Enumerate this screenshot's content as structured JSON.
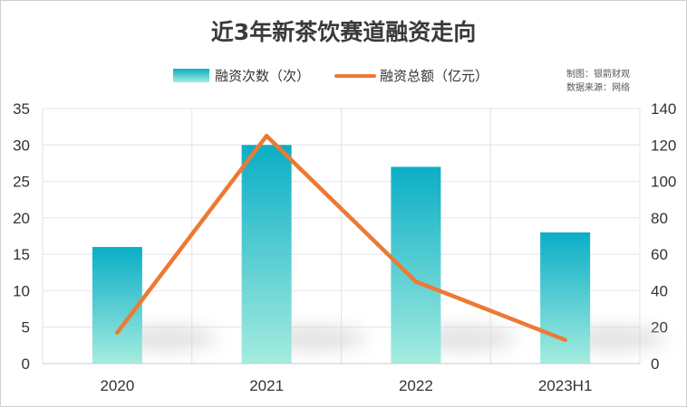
{
  "chart_data": {
    "type": "bar",
    "title": "近3年新茶饮赛道融资走向",
    "categories": [
      "2020",
      "2021",
      "2022",
      "2023H1"
    ],
    "series": [
      {
        "name": "融资次数（次）",
        "type": "bar",
        "axis": "left",
        "values": [
          16,
          30,
          27,
          18
        ]
      },
      {
        "name": "融资总额（亿元）",
        "type": "line",
        "axis": "right",
        "values": [
          17,
          125,
          45,
          13
        ]
      }
    ],
    "y_left": {
      "min": 0,
      "max": 35,
      "ticks": [
        0,
        5,
        10,
        15,
        20,
        25,
        30,
        35
      ]
    },
    "y_right": {
      "min": 0,
      "max": 140,
      "ticks": [
        0,
        20,
        40,
        60,
        80,
        100,
        120,
        140
      ]
    },
    "grid": true,
    "legend_position": "top"
  },
  "credits": [
    "制图：银箭财观",
    "数据来源：网络"
  ],
  "colors": {
    "bar_top": "#0aaec6",
    "bar_bottom": "#a4ecdf",
    "line": "#ec7a34",
    "grid": "#e4e4e4"
  }
}
